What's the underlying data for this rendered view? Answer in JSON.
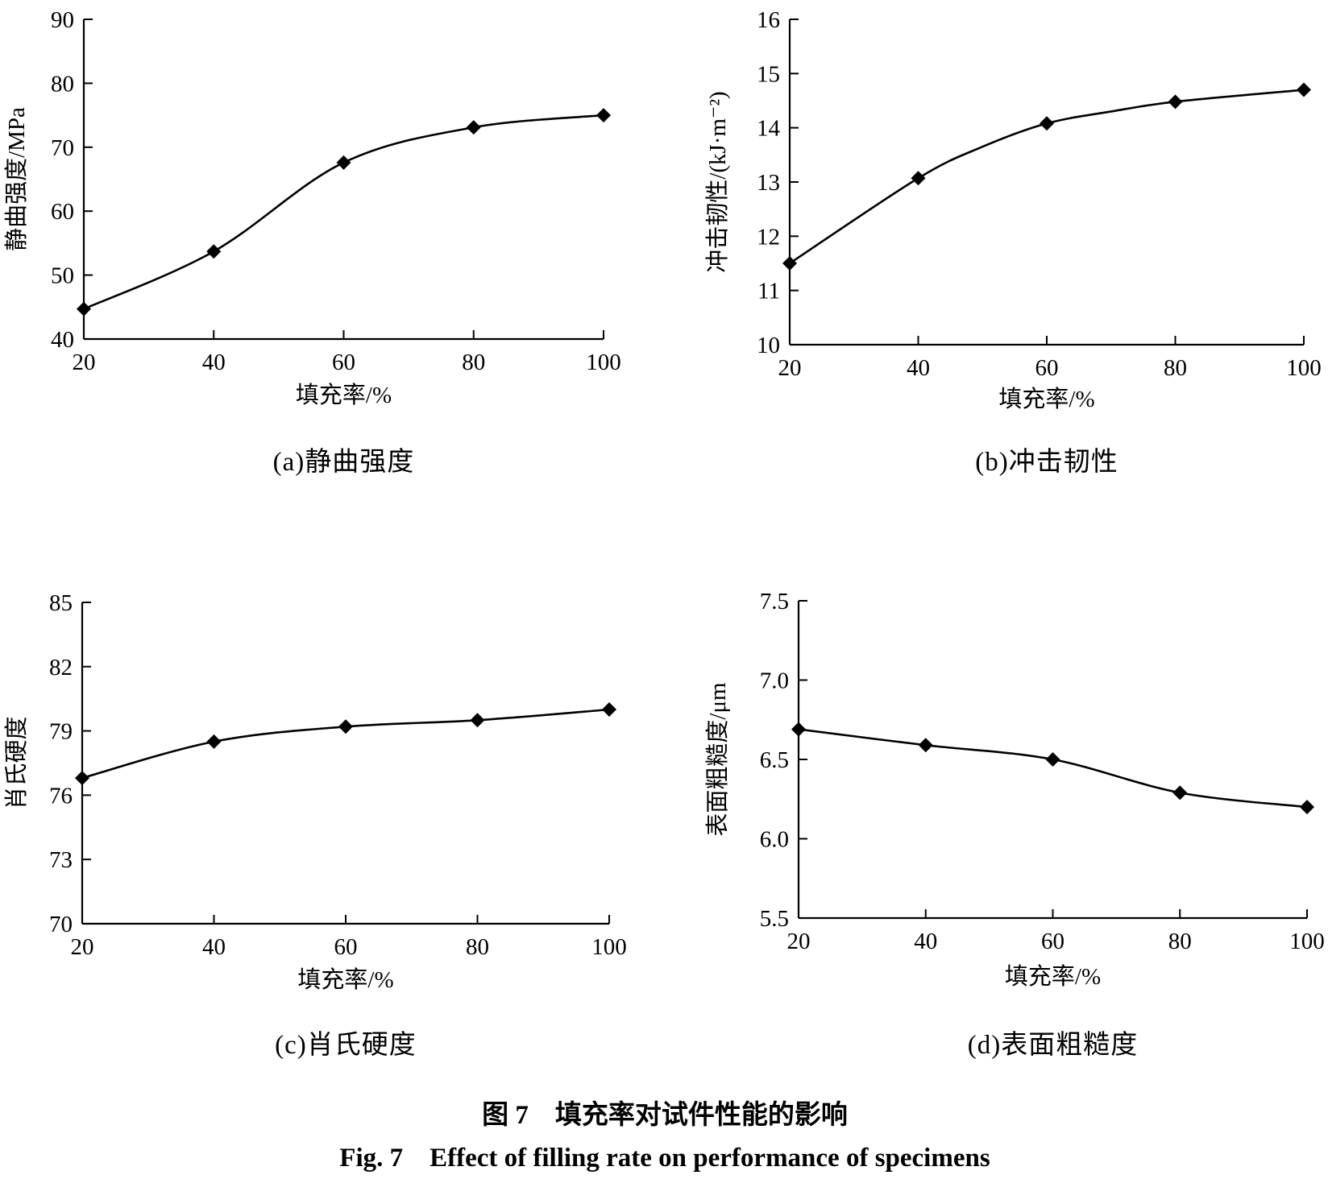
{
  "figure": {
    "title_zh": "图 7　填充率对试件性能的影响",
    "title_en": "Fig. 7　Effect of filling rate on performance of specimens"
  },
  "chart_data": [
    {
      "id": "a",
      "type": "line",
      "caption": "(a)静曲强度",
      "xlabel": "填充率/%",
      "ylabel": "静曲强度/MPa",
      "x": [
        20,
        40,
        60,
        80,
        100
      ],
      "values": [
        44.7,
        53.7,
        67.6,
        73.1,
        75.0
      ],
      "xlim": [
        20,
        100
      ],
      "ylim": [
        40,
        90
      ],
      "xticks": [
        20,
        40,
        60,
        80,
        100
      ],
      "yticks": [
        40,
        50,
        60,
        70,
        80,
        90
      ],
      "ytick_labels": [
        "40",
        "50",
        "60",
        "70",
        "80",
        "90"
      ],
      "marker": "diamond",
      "grid": false
    },
    {
      "id": "b",
      "type": "line",
      "caption": "(b)冲击韧性",
      "xlabel": "填充率/%",
      "ylabel": "冲击韧性/(kJ·m⁻²)",
      "x": [
        20,
        40,
        60,
        80,
        100
      ],
      "values": [
        11.5,
        13.07,
        14.08,
        14.48,
        14.7
      ],
      "curve_mid": {
        "x": [
          50,
          70
        ],
        "values": [
          13.65,
          14.3
        ]
      },
      "xlim": [
        20,
        100
      ],
      "ylim": [
        10,
        16
      ],
      "xticks": [
        20,
        40,
        60,
        80,
        100
      ],
      "yticks": [
        10,
        11,
        12,
        13,
        14,
        15,
        16
      ],
      "ytick_labels": [
        "10",
        "11",
        "12",
        "13",
        "14",
        "15",
        "16"
      ],
      "marker": "diamond",
      "grid": false
    },
    {
      "id": "c",
      "type": "line",
      "caption": "(c)肖氏硬度",
      "xlabel": "填充率/%",
      "ylabel": "肖氏硬度",
      "x": [
        20,
        40,
        60,
        80,
        100
      ],
      "values": [
        76.8,
        78.5,
        79.2,
        79.5,
        80.0
      ],
      "xlim": [
        20,
        100
      ],
      "ylim": [
        70,
        85
      ],
      "xticks": [
        20,
        40,
        60,
        80,
        100
      ],
      "yticks": [
        70,
        73,
        76,
        79,
        82,
        85
      ],
      "ytick_labels": [
        "70",
        "73",
        "76",
        "79",
        "82",
        "85"
      ],
      "marker": "diamond",
      "grid": false
    },
    {
      "id": "d",
      "type": "line",
      "caption": "(d)表面粗糙度",
      "xlabel": "填充率/%",
      "ylabel": "表面粗糙度/μm",
      "x": [
        20,
        40,
        60,
        80,
        100
      ],
      "values": [
        6.69,
        6.59,
        6.5,
        6.29,
        6.2
      ],
      "xlim": [
        20,
        100
      ],
      "ylim": [
        5.5,
        7.5
      ],
      "xticks": [
        20,
        40,
        60,
        80,
        100
      ],
      "yticks": [
        5.5,
        6.0,
        6.5,
        7.0,
        7.5
      ],
      "ytick_labels": [
        "5.5",
        "6.0",
        "6.5",
        "7.0",
        "7.5"
      ],
      "marker": "diamond",
      "grid": false
    }
  ]
}
